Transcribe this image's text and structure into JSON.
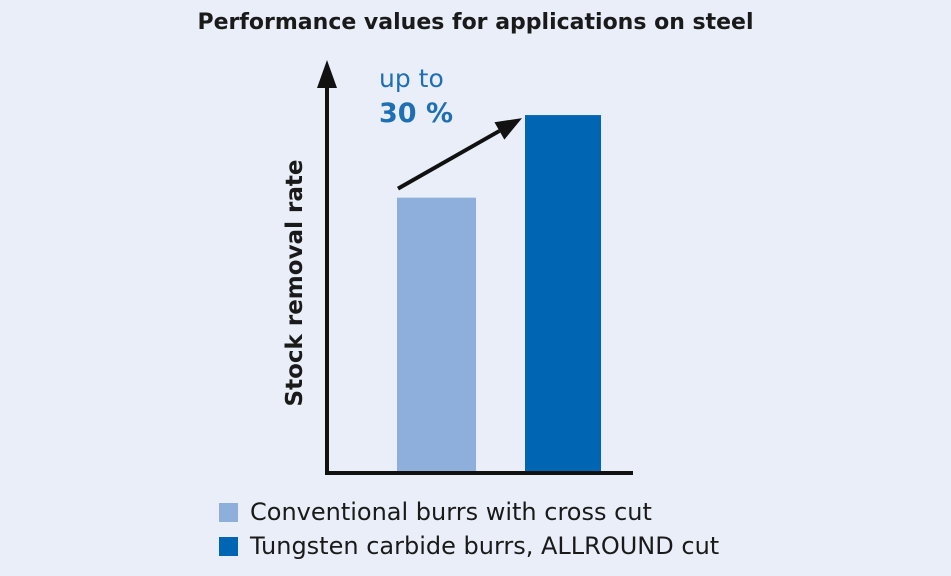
{
  "chart_data": {
    "type": "bar",
    "title": "Performance values for applications on steel",
    "xlabel": "",
    "ylabel": "Stock removal rate",
    "categories": [
      "Conventional burrs with cross cut",
      "Tungsten carbide burrs, ALLROUND cut"
    ],
    "values": [
      100,
      130
    ],
    "ylim": [
      0,
      150
    ],
    "grid": false,
    "colors": [
      "#8eaedb",
      "#0066b3"
    ],
    "legend": {
      "placement": "bottom-left",
      "entries": [
        "Conventional burrs with cross cut",
        "Tungsten carbide burrs, ALLROUND cut"
      ]
    },
    "annotation": {
      "line1": "up to",
      "line2": "30 %"
    }
  },
  "background": "#e9eef8"
}
